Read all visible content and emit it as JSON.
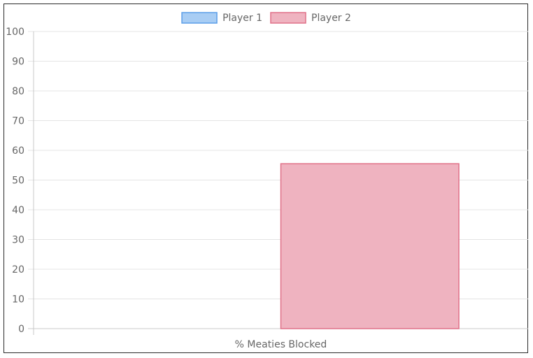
{
  "chart_data": {
    "type": "bar",
    "categories": [
      "% Meaties Blocked"
    ],
    "series": [
      {
        "name": "Player 1",
        "values": [
          0
        ],
        "color": "#5b9ee8",
        "fill": "#a8cdf4"
      },
      {
        "name": "Player 2",
        "values": [
          55.5
        ],
        "color": "#e07088",
        "fill": "#efb3c0"
      }
    ],
    "ylim": [
      0,
      100
    ],
    "yticks": [
      0,
      10,
      20,
      30,
      40,
      50,
      60,
      70,
      80,
      90,
      100
    ],
    "legend_position": "top",
    "grid": true,
    "title": "",
    "xlabel": "",
    "ylabel": ""
  }
}
